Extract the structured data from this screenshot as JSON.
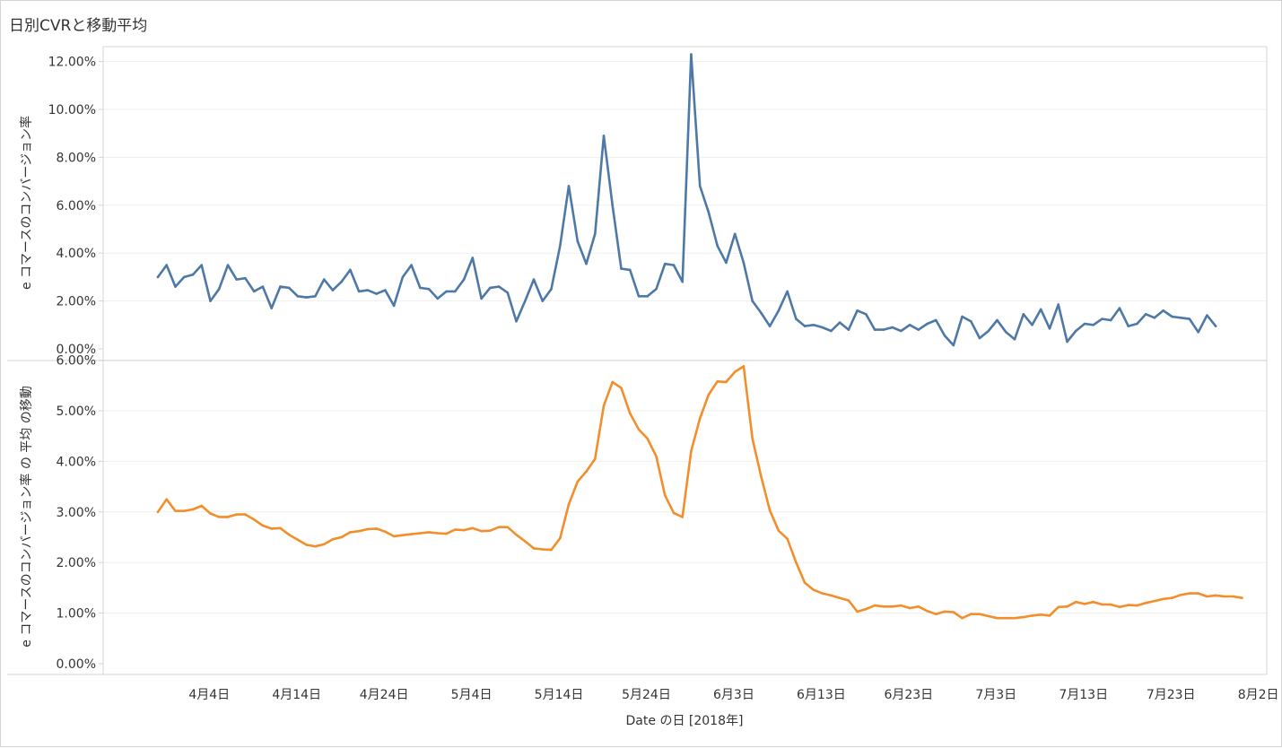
{
  "title": "日別CVRと移動平均",
  "colors": {
    "series_top": "#4e79a7",
    "series_bottom": "#f28e2b",
    "grid": "#efefef",
    "border": "#d4d4d4",
    "text": "#333333"
  },
  "chart_data": [
    {
      "type": "line",
      "ylabel": "e コマースのコンバージョン率",
      "ylim": [
        0,
        12.4
      ],
      "yticks": [
        "0.00%",
        "2.00%",
        "4.00%",
        "6.00%",
        "8.00%",
        "10.00%",
        "12.00%"
      ],
      "x_start": "2018-04-01",
      "x_end": "2018-07-31",
      "series": [
        {
          "values": [
            3.0,
            3.5,
            2.6,
            3.0,
            3.1,
            3.5,
            2.0,
            2.5,
            3.5,
            2.9,
            2.95,
            2.4,
            2.6,
            1.7,
            2.6,
            2.55,
            2.2,
            2.15,
            2.2,
            2.9,
            2.45,
            2.8,
            3.3,
            2.4,
            2.45,
            2.3,
            2.45,
            1.8,
            3.0,
            3.5,
            2.55,
            2.5,
            2.1,
            2.4,
            2.4,
            2.9,
            3.8,
            2.1,
            2.55,
            2.6,
            2.35,
            1.15,
            2.0,
            2.9,
            2.0,
            2.5,
            4.3,
            6.8,
            4.5,
            3.55,
            4.8,
            8.9,
            6.0,
            3.35,
            3.3,
            2.2,
            2.2,
            2.5,
            3.55,
            3.5,
            2.8,
            12.3,
            6.8,
            5.7,
            4.3,
            3.6,
            4.8,
            3.6,
            2.0,
            1.5,
            0.95,
            1.6,
            2.4,
            1.25,
            0.95,
            1.0,
            0.9,
            0.75,
            1.1,
            0.8,
            1.6,
            1.45,
            0.8,
            0.8,
            0.9,
            0.75,
            1.0,
            0.8,
            1.05,
            1.2,
            0.55,
            0.15,
            1.35,
            1.15,
            0.45,
            0.75,
            1.2,
            0.7,
            0.4,
            1.45,
            1.0,
            1.65,
            0.85,
            1.85,
            0.3,
            0.75,
            1.05,
            1.0,
            1.25,
            1.2,
            1.7,
            0.95,
            1.05,
            1.45,
            1.3,
            1.6,
            1.35,
            1.3,
            1.25,
            0.7,
            1.4,
            0.95
          ]
        }
      ]
    },
    {
      "type": "line",
      "ylabel": "e コマースのコンバージョン率 の 平均 の移動",
      "ylim": [
        0,
        6.2
      ],
      "yticks": [
        "0.00%",
        "1.00%",
        "2.00%",
        "3.00%",
        "4.00%",
        "5.00%",
        "6.00%"
      ],
      "xlabel": "Date の日 [2018年]",
      "xtick_labels": [
        "4月4日",
        "4月14日",
        "4月24日",
        "5月4日",
        "5月14日",
        "5月24日",
        "6月3日",
        "6月13日",
        "6月23日",
        "7月3日",
        "7月13日",
        "7月23日",
        "8月2日"
      ],
      "x_start": "2018-04-01",
      "x_end": "2018-07-31",
      "series": [
        {
          "values": [
            3.0,
            3.25,
            3.02,
            3.02,
            3.05,
            3.12,
            2.97,
            2.9,
            2.9,
            2.95,
            2.95,
            2.85,
            2.73,
            2.67,
            2.68,
            2.55,
            2.45,
            2.35,
            2.32,
            2.36,
            2.46,
            2.5,
            2.6,
            2.62,
            2.66,
            2.67,
            2.61,
            2.52,
            2.54,
            2.56,
            2.58,
            2.6,
            2.58,
            2.57,
            2.65,
            2.64,
            2.68,
            2.62,
            2.63,
            2.7,
            2.7,
            2.55,
            2.42,
            2.28,
            2.26,
            2.25,
            2.48,
            3.15,
            3.6,
            3.8,
            4.05,
            5.1,
            5.57,
            5.45,
            4.95,
            4.63,
            4.45,
            4.1,
            3.33,
            2.98,
            2.9,
            4.2,
            4.85,
            5.32,
            5.58,
            5.57,
            5.77,
            5.88,
            4.45,
            3.7,
            3.03,
            2.63,
            2.47,
            2.0,
            1.6,
            1.46,
            1.39,
            1.35,
            1.3,
            1.25,
            1.03,
            1.08,
            1.15,
            1.13,
            1.13,
            1.15,
            1.1,
            1.13,
            1.04,
            0.98,
            1.03,
            1.02,
            0.9,
            0.98,
            0.98,
            0.94,
            0.9,
            0.9,
            0.9,
            0.92,
            0.95,
            0.97,
            0.95,
            1.12,
            1.13,
            1.22,
            1.18,
            1.22,
            1.17,
            1.17,
            1.12,
            1.16,
            1.15,
            1.2,
            1.24,
            1.28,
            1.3,
            1.36,
            1.39,
            1.39,
            1.33,
            1.35,
            1.33,
            1.33,
            1.3
          ]
        }
      ]
    }
  ]
}
